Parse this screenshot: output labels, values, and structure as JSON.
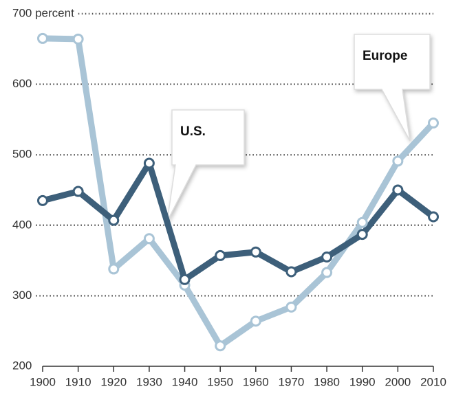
{
  "chart_data": {
    "type": "line",
    "x": [
      1900,
      1910,
      1920,
      1930,
      1940,
      1950,
      1960,
      1970,
      1980,
      1990,
      2000,
      2010
    ],
    "series": [
      {
        "name": "Europe",
        "color": "#a9c4d6",
        "values": [
          665,
          664,
          338,
          381,
          315,
          229,
          264,
          284,
          333,
          404,
          491,
          545
        ]
      },
      {
        "name": "U.S.",
        "color": "#3d5f7a",
        "values": [
          435,
          448,
          407,
          488,
          323,
          357,
          362,
          334,
          355,
          387,
          450,
          412
        ]
      }
    ],
    "xlim": [
      1900,
      2010
    ],
    "xticks": [
      1900,
      1910,
      1920,
      1930,
      1940,
      1950,
      1960,
      1970,
      1980,
      1990,
      2000,
      2010
    ],
    "ylim": [
      200,
      700
    ],
    "yticks": [
      200,
      300,
      400,
      500,
      600,
      {
        "value": 700,
        "label": "700 percent"
      }
    ],
    "grid": true
  }
}
